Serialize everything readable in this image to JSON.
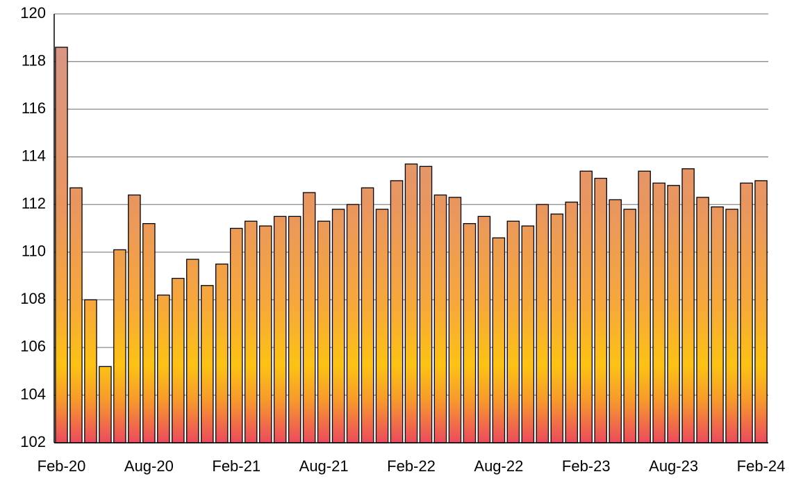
{
  "chart_data": {
    "type": "bar",
    "categories": [
      "Feb-20",
      null,
      null,
      null,
      null,
      null,
      "Aug-20",
      null,
      null,
      null,
      null,
      null,
      "Feb-21",
      null,
      null,
      null,
      null,
      null,
      "Aug-21",
      null,
      null,
      null,
      null,
      null,
      "Feb-22",
      null,
      null,
      null,
      null,
      null,
      "Aug-22",
      null,
      null,
      null,
      null,
      null,
      "Feb-23",
      null,
      null,
      null,
      null,
      null,
      "Aug-23",
      null,
      null,
      null,
      null,
      null,
      "Feb-24"
    ],
    "values": [
      118.6,
      112.7,
      108.0,
      105.2,
      110.1,
      112.4,
      111.2,
      108.2,
      108.9,
      109.7,
      108.6,
      109.5,
      111.0,
      111.3,
      111.1,
      111.5,
      111.5,
      112.5,
      111.3,
      111.8,
      112.0,
      112.7,
      111.8,
      113.0,
      113.7,
      113.6,
      112.4,
      112.3,
      111.2,
      111.5,
      110.6,
      111.3,
      111.1,
      112.0,
      111.6,
      112.1,
      113.4,
      113.1,
      112.2,
      111.8,
      113.4,
      112.9,
      112.8,
      113.5,
      112.3,
      111.9,
      111.8,
      112.9,
      113.0
    ],
    "ylim": [
      102,
      120
    ],
    "yticks": [
      102,
      104,
      106,
      108,
      110,
      112,
      114,
      116,
      118,
      120
    ],
    "grid": true
  }
}
